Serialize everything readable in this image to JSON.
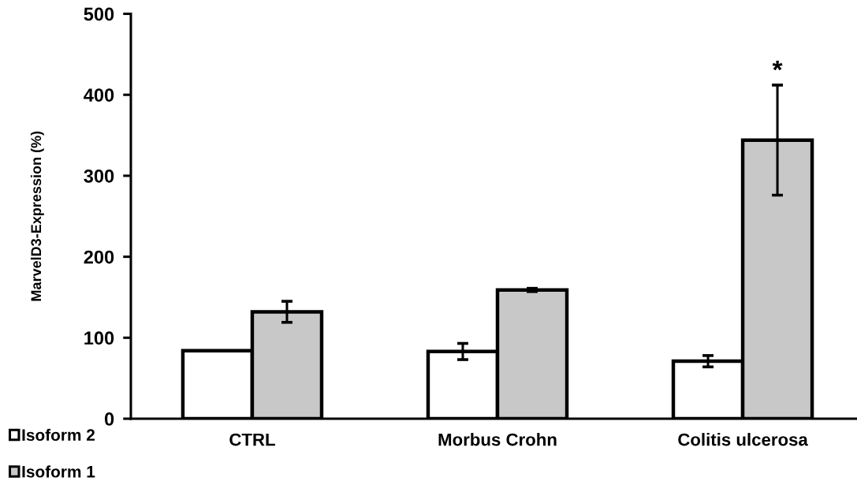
{
  "chart_data": {
    "type": "bar",
    "ylabel": "MarvelD3-Expression (%)",
    "categories": [
      "CTRL",
      "Morbus Crohn",
      "Colitis ulcerosa"
    ],
    "series": [
      {
        "name": "Isoform 2",
        "color": "#ffffff",
        "values": [
          84,
          83,
          71
        ],
        "errors": [
          null,
          10,
          7
        ]
      },
      {
        "name": "Isoform 1",
        "color": "#c8c8c8",
        "values": [
          132,
          159,
          344
        ],
        "errors": [
          13,
          2,
          68
        ]
      }
    ],
    "ylim": [
      0,
      500
    ],
    "yticks": [
      0,
      100,
      200,
      300,
      400,
      500
    ],
    "grid": false,
    "legend": "bottom left",
    "annotations": [
      "*"
    ]
  }
}
